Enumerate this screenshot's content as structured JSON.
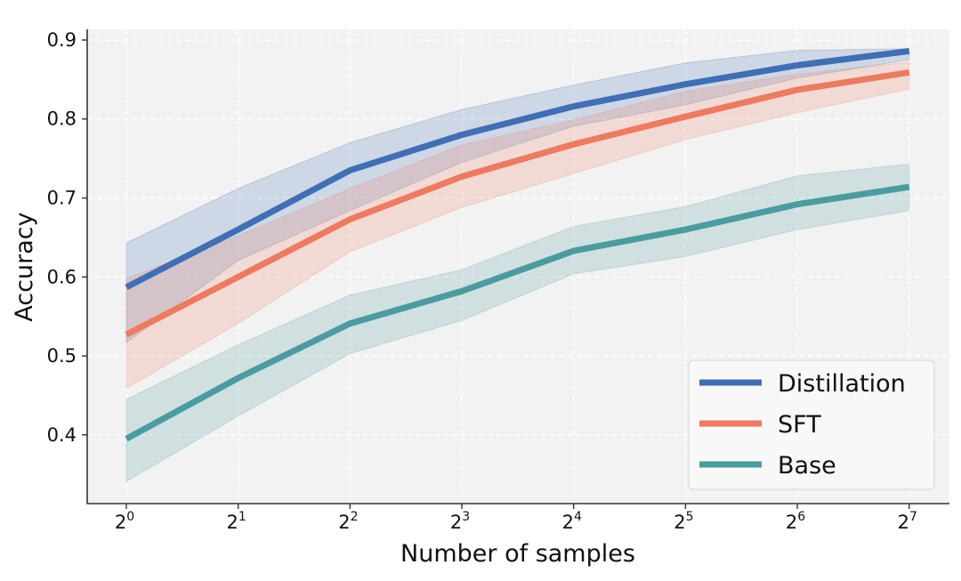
{
  "chart_data": {
    "type": "line",
    "title": "",
    "xlabel": "Number of samples",
    "ylabel": "Accuracy",
    "x_scale": "log2",
    "x": [
      0,
      1,
      2,
      3,
      4,
      5,
      6,
      7
    ],
    "x_tick_labels": [
      {
        "base": "2",
        "exp": "0"
      },
      {
        "base": "2",
        "exp": "1"
      },
      {
        "base": "2",
        "exp": "2"
      },
      {
        "base": "2",
        "exp": "3"
      },
      {
        "base": "2",
        "exp": "4"
      },
      {
        "base": "2",
        "exp": "5"
      },
      {
        "base": "2",
        "exp": "6"
      },
      {
        "base": "2",
        "exp": "7"
      }
    ],
    "xlim": [
      -0.35,
      7.36
    ],
    "ylim": [
      0.313,
      0.9135
    ],
    "y_ticks": [
      0.4,
      0.5,
      0.6,
      0.7,
      0.8,
      0.9
    ],
    "y_tick_labels": [
      "0.4",
      "0.5",
      "0.6",
      "0.7",
      "0.8",
      "0.9"
    ],
    "grid": true,
    "legend_position": "lower-right",
    "series": [
      {
        "name": "Distillation",
        "color": "#3f6fb5",
        "values": [
          0.587,
          0.66,
          0.735,
          0.78,
          0.816,
          0.844,
          0.868,
          0.886
        ],
        "upper": [
          0.643,
          0.712,
          0.77,
          0.812,
          0.843,
          0.871,
          0.887,
          0.889
        ],
        "lower": [
          0.517,
          0.621,
          0.684,
          0.745,
          0.791,
          0.818,
          0.852,
          0.875
        ]
      },
      {
        "name": "SFT",
        "color": "#ee7a5f",
        "values": [
          0.527,
          0.6,
          0.673,
          0.727,
          0.768,
          0.803,
          0.837,
          0.859
        ],
        "upper": [
          0.598,
          0.652,
          0.712,
          0.767,
          0.799,
          0.835,
          0.857,
          0.872
        ],
        "lower": [
          0.459,
          0.541,
          0.632,
          0.688,
          0.731,
          0.774,
          0.808,
          0.838
        ]
      },
      {
        "name": "Base",
        "color": "#4a9ca0",
        "values": [
          0.395,
          0.472,
          0.541,
          0.582,
          0.633,
          0.66,
          0.692,
          0.714
        ],
        "upper": [
          0.445,
          0.514,
          0.577,
          0.609,
          0.664,
          0.689,
          0.728,
          0.743
        ],
        "lower": [
          0.341,
          0.424,
          0.503,
          0.545,
          0.604,
          0.626,
          0.66,
          0.684
        ]
      }
    ]
  },
  "colors": {
    "plot_background": "#f2f2f2",
    "grid": "#ffffff",
    "axis": "#333333"
  }
}
